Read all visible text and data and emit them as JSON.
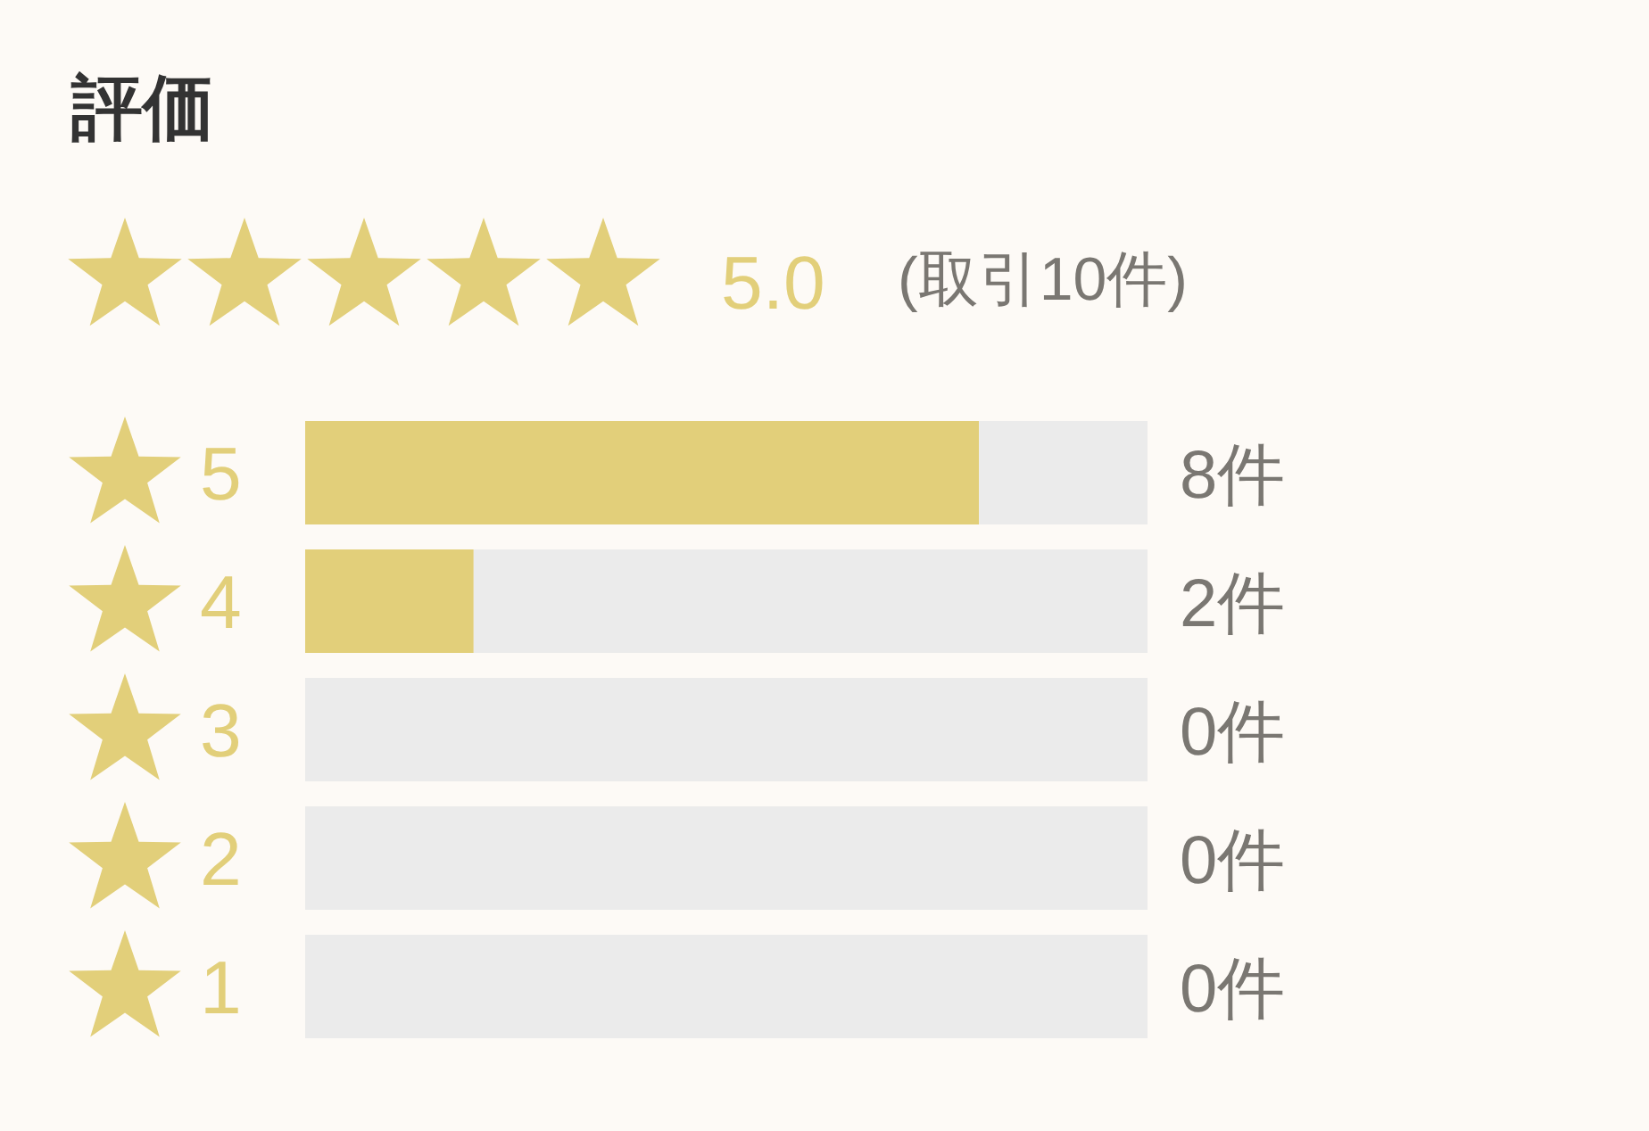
{
  "chart_data": {
    "type": "bar",
    "orientation": "horizontal",
    "stacked": true,
    "title": "評価",
    "subtitle": "5.0",
    "annotations": [
      "(取引10件)"
    ],
    "categories": [
      "5",
      "4",
      "3",
      "2",
      "1"
    ],
    "series": [
      {
        "color": "#e2cf7a",
        "values": [
          8,
          2,
          0,
          0,
          0
        ],
        "value_labels": [
          "8件",
          "2件",
          "0件",
          "0件",
          "0件"
        ]
      },
      {
        "color": "#ebebeb",
        "values": [
          2,
          8,
          10,
          10,
          10
        ]
      }
    ],
    "xlim": [
      0,
      10
    ],
    "tick_labels": "y"
  }
}
